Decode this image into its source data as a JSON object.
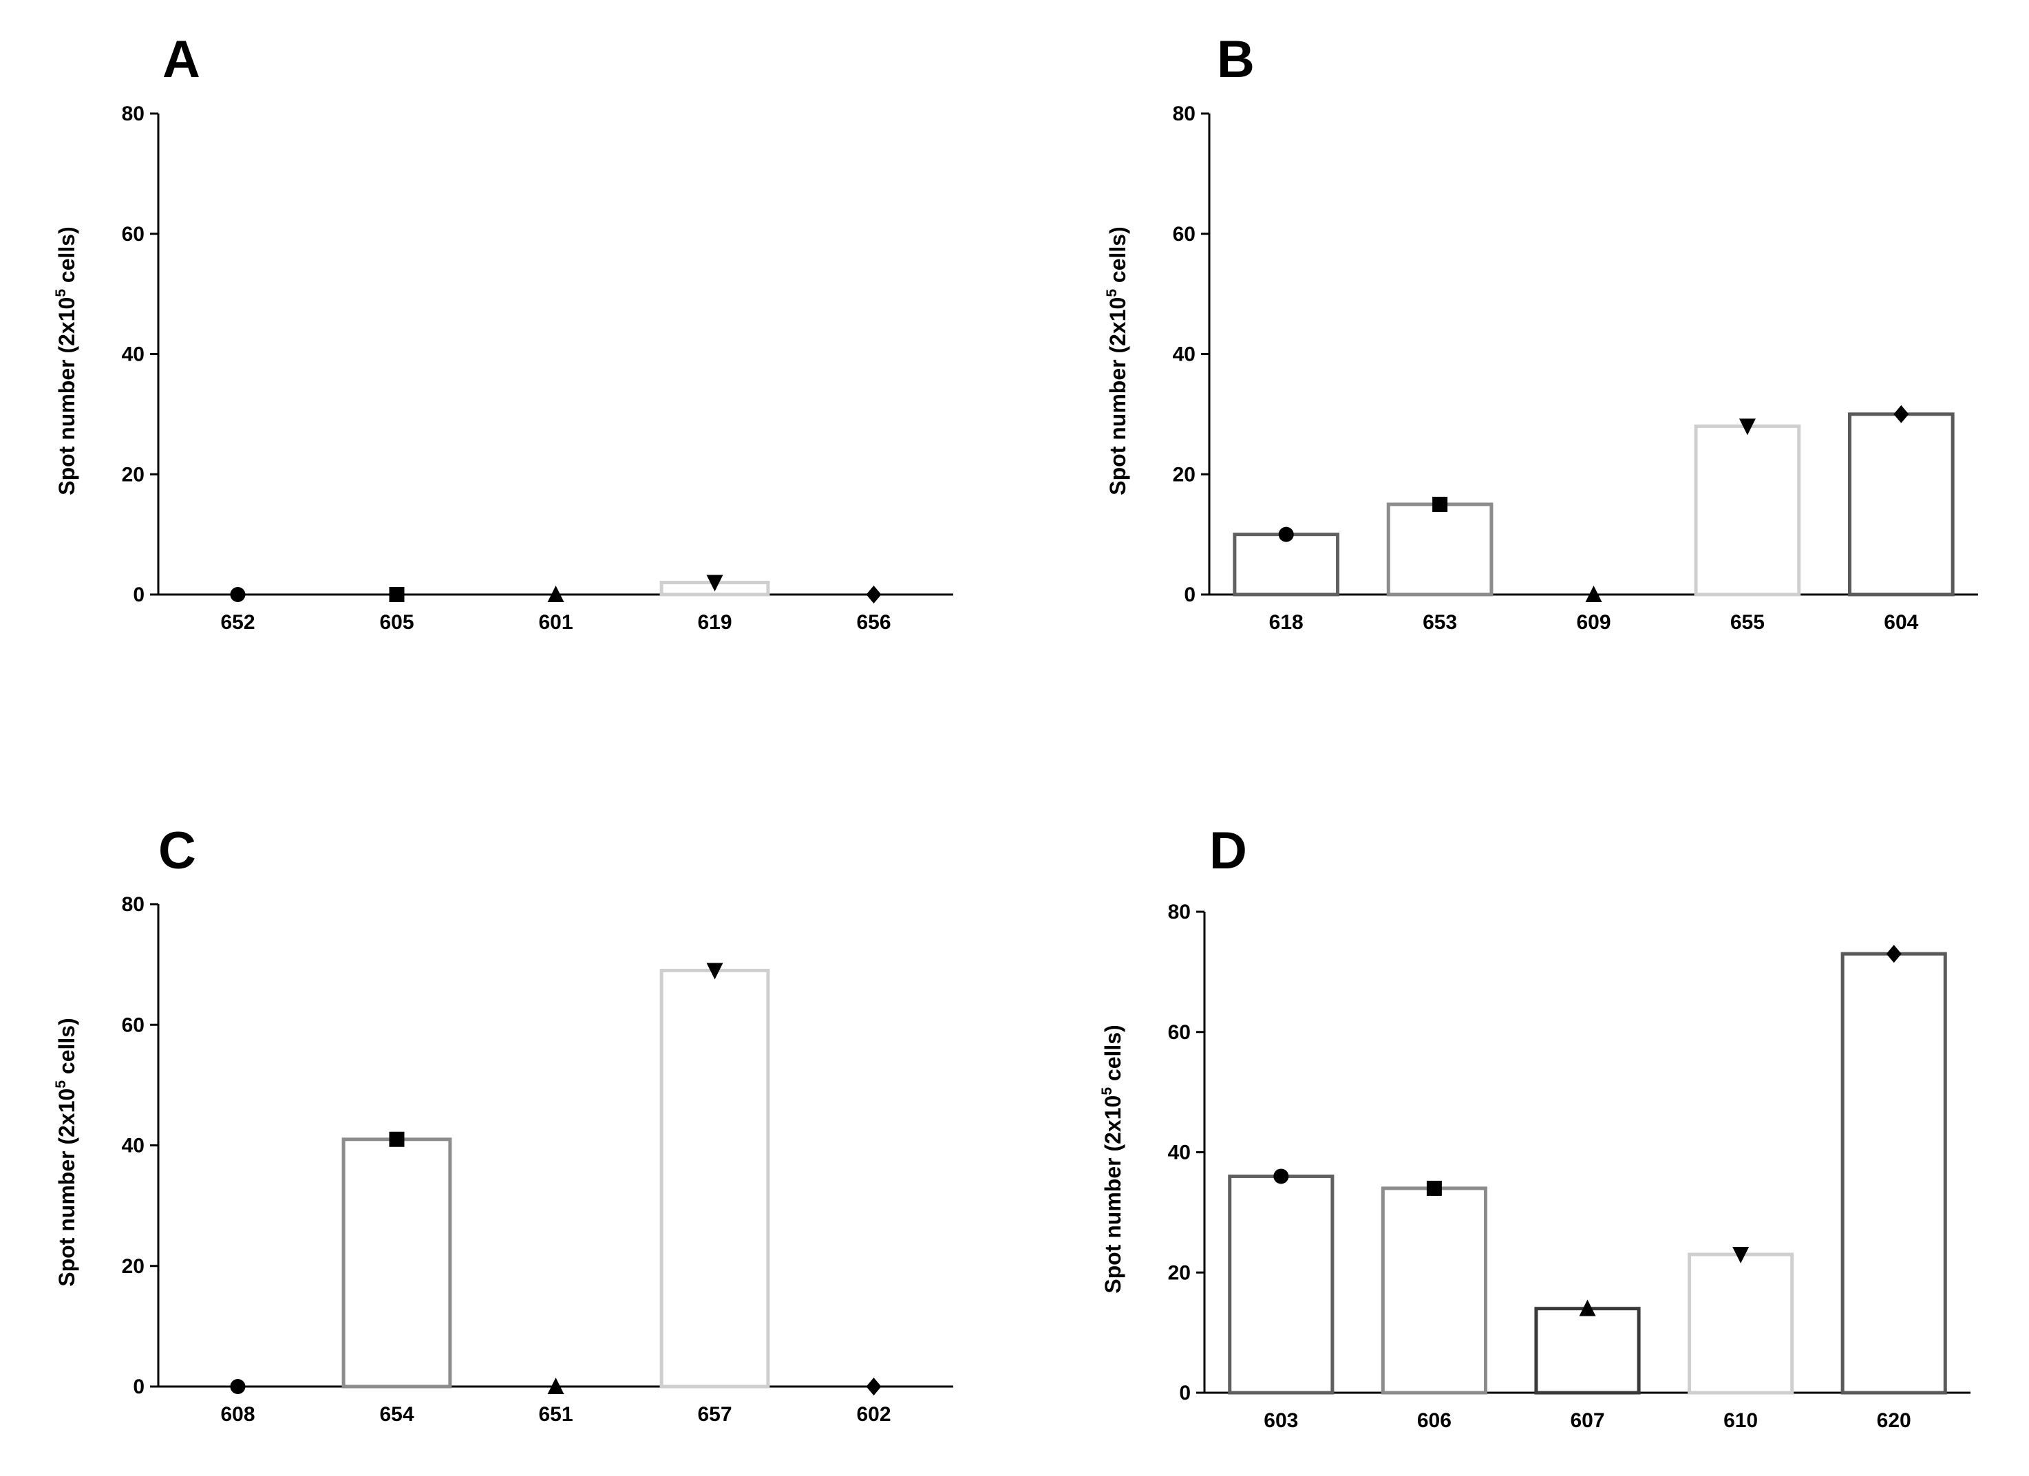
{
  "chart_data": [
    {
      "panel_label": "A",
      "type": "bar",
      "ylabel": "Spot number (2x10^5 cells)",
      "ylim": [
        0,
        80
      ],
      "yticks": [
        0,
        20,
        40,
        60,
        80
      ],
      "categories": [
        "652",
        "605",
        "601",
        "619",
        "656"
      ],
      "values": [
        0,
        0,
        0,
        2,
        0
      ],
      "markers": [
        "circle",
        "square",
        "triangle-up",
        "triangle-down",
        "diamond"
      ],
      "bar_colors": [
        "#606060",
        "#8c8c8c",
        "#3a3a3a",
        "#cfcfcf",
        "#5a5a5a"
      ]
    },
    {
      "panel_label": "B",
      "type": "bar",
      "ylabel": "Spot number (2x10^5 cells)",
      "ylim": [
        0,
        80
      ],
      "yticks": [
        0,
        20,
        40,
        60,
        80
      ],
      "categories": [
        "618",
        "653",
        "609",
        "655",
        "604"
      ],
      "values": [
        10,
        15,
        0,
        28,
        30
      ],
      "markers": [
        "circle",
        "square",
        "triangle-up",
        "triangle-down",
        "diamond"
      ],
      "bar_colors": [
        "#606060",
        "#8c8c8c",
        "#3a3a3a",
        "#cfcfcf",
        "#5a5a5a"
      ]
    },
    {
      "panel_label": "C",
      "type": "bar",
      "ylabel": "Spot number (2x10^5 cells)",
      "ylim": [
        0,
        80
      ],
      "yticks": [
        0,
        20,
        40,
        60,
        80
      ],
      "categories": [
        "608",
        "654",
        "651",
        "657",
        "602"
      ],
      "values": [
        0,
        41,
        0,
        69,
        0
      ],
      "markers": [
        "circle",
        "square",
        "triangle-up",
        "triangle-down",
        "diamond"
      ],
      "bar_colors": [
        "#606060",
        "#8c8c8c",
        "#3a3a3a",
        "#cfcfcf",
        "#5a5a5a"
      ]
    },
    {
      "panel_label": "D",
      "type": "bar",
      "ylabel": "Spot number (2x10^5 cells)",
      "ylim": [
        0,
        80
      ],
      "yticks": [
        0,
        20,
        40,
        60,
        80
      ],
      "categories": [
        "603",
        "606",
        "607",
        "610",
        "620"
      ],
      "values": [
        36,
        34,
        14,
        23,
        73
      ],
      "markers": [
        "circle",
        "square",
        "triangle-up",
        "triangle-down",
        "diamond"
      ],
      "bar_colors": [
        "#606060",
        "#8c8c8c",
        "#3a3a3a",
        "#cfcfcf",
        "#5a5a5a"
      ]
    }
  ]
}
